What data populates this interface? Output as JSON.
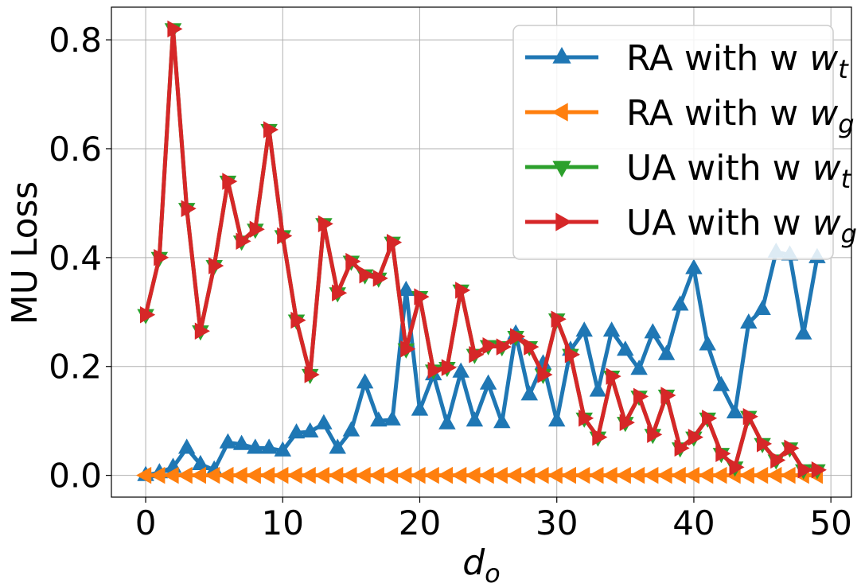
{
  "chart_data": {
    "type": "line",
    "title": "",
    "xlabel": "d",
    "xlabel_sub": "o",
    "ylabel": "MU Loss",
    "xlim": [
      -2.5,
      51.5
    ],
    "ylim": [
      -0.04,
      0.86
    ],
    "xticks": [
      0,
      10,
      20,
      30,
      40,
      50
    ],
    "xtick_labels": [
      "0",
      "10",
      "20",
      "30",
      "40",
      "50"
    ],
    "yticks": [
      0.0,
      0.2,
      0.4,
      0.6,
      0.8
    ],
    "ytick_labels": [
      "0.0",
      "0.2",
      "0.4",
      "0.6",
      "0.8"
    ],
    "grid": true,
    "legend_position": "top-right",
    "x": [
      0,
      1,
      2,
      3,
      4,
      5,
      6,
      7,
      8,
      9,
      10,
      11,
      12,
      13,
      14,
      15,
      16,
      17,
      18,
      19,
      20,
      21,
      22,
      23,
      24,
      25,
      26,
      27,
      28,
      29,
      30,
      31,
      32,
      33,
      34,
      35,
      36,
      37,
      38,
      39,
      40,
      41,
      42,
      43,
      44,
      45,
      46,
      47,
      48,
      49
    ],
    "series": [
      {
        "name": "RA with w",
        "name_sub": "t",
        "color": "#1f77b4",
        "marker": "triangle-up",
        "values": [
          0.0,
          0.005,
          0.015,
          0.05,
          0.02,
          0.01,
          0.06,
          0.057,
          0.05,
          0.05,
          0.045,
          0.078,
          0.08,
          0.095,
          0.05,
          0.082,
          0.17,
          0.1,
          0.102,
          0.34,
          0.12,
          0.185,
          0.095,
          0.19,
          0.1,
          0.168,
          0.097,
          0.26,
          0.148,
          0.205,
          0.1,
          0.23,
          0.265,
          0.155,
          0.265,
          0.23,
          0.195,
          0.262,
          0.222,
          0.313,
          0.38,
          0.24,
          0.165,
          0.115,
          0.28,
          0.305,
          0.41,
          0.405,
          0.26,
          0.4
        ]
      },
      {
        "name": "RA with w",
        "name_sub": "g",
        "color": "#ff7f0e",
        "marker": "triangle-left",
        "values": [
          0,
          0,
          0,
          0,
          0,
          0,
          0,
          0,
          0,
          0,
          0,
          0,
          0,
          0,
          0,
          0,
          0,
          0,
          0,
          0,
          0,
          0,
          0,
          0,
          0,
          0,
          0,
          0,
          0,
          0,
          0,
          0,
          0,
          0,
          0,
          0,
          0,
          0,
          0,
          0,
          0,
          0,
          0,
          0,
          0,
          0,
          0,
          0,
          0,
          0
        ]
      },
      {
        "name": "UA with w",
        "name_sub": "t",
        "color": "#2ca02c",
        "marker": "triangle-down",
        "values": [
          0.295,
          0.4,
          0.82,
          0.49,
          0.265,
          0.385,
          0.54,
          0.43,
          0.452,
          0.635,
          0.44,
          0.285,
          0.185,
          0.462,
          0.335,
          0.393,
          0.368,
          0.362,
          0.428,
          0.232,
          0.328,
          0.193,
          0.198,
          0.34,
          0.222,
          0.238,
          0.236,
          0.255,
          0.236,
          0.185,
          0.287,
          0.222,
          0.105,
          0.07,
          0.182,
          0.097,
          0.145,
          0.075,
          0.147,
          0.05,
          0.07,
          0.105,
          0.04,
          0.015,
          0.108,
          0.058,
          0.028,
          0.05,
          0.01,
          0.01
        ]
      },
      {
        "name": "UA with w",
        "name_sub": "g",
        "color": "#d62728",
        "marker": "triangle-right",
        "values": [
          0.295,
          0.4,
          0.82,
          0.49,
          0.265,
          0.385,
          0.54,
          0.43,
          0.452,
          0.635,
          0.44,
          0.285,
          0.185,
          0.462,
          0.335,
          0.393,
          0.368,
          0.362,
          0.428,
          0.232,
          0.328,
          0.193,
          0.198,
          0.34,
          0.222,
          0.238,
          0.236,
          0.255,
          0.236,
          0.185,
          0.287,
          0.222,
          0.105,
          0.07,
          0.182,
          0.097,
          0.145,
          0.075,
          0.147,
          0.05,
          0.07,
          0.105,
          0.04,
          0.015,
          0.108,
          0.058,
          0.028,
          0.05,
          0.01,
          0.01
        ]
      }
    ]
  }
}
